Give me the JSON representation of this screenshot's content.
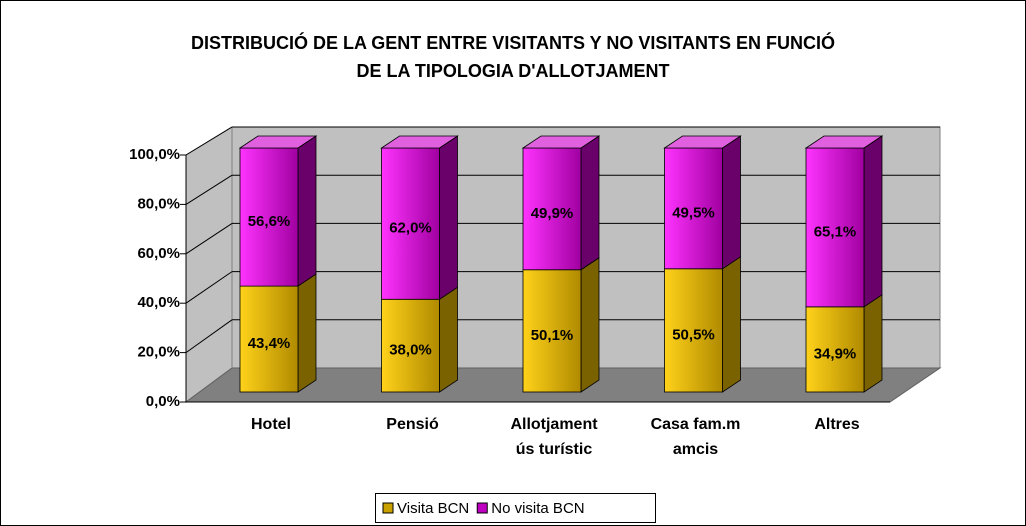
{
  "chart_data": {
    "type": "bar3d_stacked",
    "title": [
      "DISTRIBUCIÓ DE LA GENT ENTRE VISITANTS Y NO VISITANTS EN FUNCIÓ",
      "DE LA TIPOLOGIA D'ALLOTJAMENT"
    ],
    "categories": [
      [
        "Hotel"
      ],
      [
        "Pensió"
      ],
      [
        "Allotjament",
        "ús turístic"
      ],
      [
        "Casa fam.m",
        "amcis"
      ],
      [
        "Altres"
      ]
    ],
    "series": [
      {
        "name": "Visita BCN",
        "color": "#c9a100",
        "values": [
          43.4,
          38.0,
          50.1,
          50.5,
          34.9
        ],
        "value_labels": [
          "43,4%",
          "38,0%",
          "50,1%",
          "50,5%",
          "34,9%"
        ]
      },
      {
        "name": "No visita BCN",
        "color": "#c000c0",
        "values": [
          56.6,
          62.0,
          49.9,
          49.5,
          65.1
        ],
        "value_labels": [
          "56,6%",
          "62,0%",
          "49,9%",
          "49,5%",
          "65,1%"
        ]
      }
    ],
    "ylim": [
      0,
      100
    ],
    "yticks": [
      {
        "value": 0,
        "label": "0,0%"
      },
      {
        "value": 20,
        "label": "20,0%"
      },
      {
        "value": 40,
        "label": "40,0%"
      },
      {
        "value": 60,
        "label": "60,0%"
      },
      {
        "value": 80,
        "label": "80,0%"
      },
      {
        "value": 100,
        "label": "100,0%"
      }
    ],
    "grid": true,
    "legend": "bottom"
  }
}
